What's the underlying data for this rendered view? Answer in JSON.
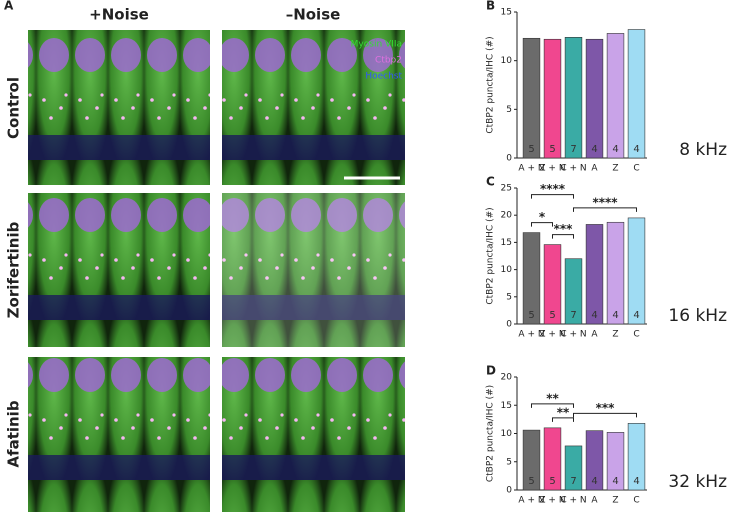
{
  "panel_a": {
    "letter": "A",
    "columns": [
      "+Noise",
      "–Noise"
    ],
    "rows": [
      "Control",
      "Zorifertinib",
      "Afatinib"
    ],
    "legend": [
      "Myosin VIIa",
      "Ctbp2",
      "Hoechst"
    ]
  },
  "chart_data": [
    {
      "type": "bar",
      "panel": "B",
      "ylabel": "CtBP2 puncta/IHC (#)",
      "frequency": "8 kHz",
      "categories": [
        "A + N",
        "Z + N",
        "C + N",
        "A",
        "Z",
        "C"
      ],
      "values": [
        12.3,
        12.2,
        12.4,
        12.2,
        12.8,
        13.2
      ],
      "colors": [
        "#6b6b6b",
        "#f0478f",
        "#3aaba5",
        "#7e57a8",
        "#c9a3e8",
        "#9fdcf3"
      ],
      "n_labels": [
        5,
        5,
        7,
        4,
        4,
        4
      ],
      "ylim": [
        0,
        15
      ],
      "yticks": [
        0,
        5,
        10,
        15
      ],
      "brackets": []
    },
    {
      "type": "bar",
      "panel": "C",
      "ylabel": "CtBP2 puncta/IHC (#)",
      "frequency": "16 kHz",
      "categories": [
        "A + N",
        "Z + N",
        "C + N",
        "A",
        "Z",
        "C"
      ],
      "values": [
        16.8,
        14.6,
        12.0,
        18.3,
        18.7,
        19.5
      ],
      "colors": [
        "#6b6b6b",
        "#f0478f",
        "#3aaba5",
        "#7e57a8",
        "#c9a3e8",
        "#9fdcf3"
      ],
      "n_labels": [
        5,
        5,
        7,
        4,
        4,
        4
      ],
      "ylim": [
        0,
        25
      ],
      "yticks": [
        0,
        5,
        10,
        15,
        20,
        25
      ],
      "brackets": [
        {
          "label": "*",
          "from": "A + N",
          "to": "Z + N"
        },
        {
          "label": "****",
          "from": "A + N",
          "to": "C + N"
        },
        {
          "label": "***",
          "from": "Z + N",
          "to": "C + N"
        },
        {
          "label": "****",
          "from": "C + N",
          "to": "C"
        }
      ]
    },
    {
      "type": "bar",
      "panel": "D",
      "ylabel": "CtBP2 puncta/IHC (#)",
      "frequency": "32 kHz",
      "categories": [
        "A + N",
        "Z + N",
        "C + N",
        "A",
        "Z",
        "C"
      ],
      "values": [
        10.6,
        11.0,
        7.8,
        10.5,
        10.2,
        11.8
      ],
      "colors": [
        "#6b6b6b",
        "#f0478f",
        "#3aaba5",
        "#7e57a8",
        "#c9a3e8",
        "#9fdcf3"
      ],
      "n_labels": [
        5,
        5,
        7,
        4,
        4,
        4
      ],
      "ylim": [
        0,
        20
      ],
      "yticks": [
        0,
        5,
        10,
        15,
        20
      ],
      "brackets": [
        {
          "label": "**",
          "from": "A + N",
          "to": "C + N"
        },
        {
          "label": "**",
          "from": "Z + N",
          "to": "C + N"
        },
        {
          "label": "***",
          "from": "C + N",
          "to": "C"
        }
      ]
    }
  ]
}
